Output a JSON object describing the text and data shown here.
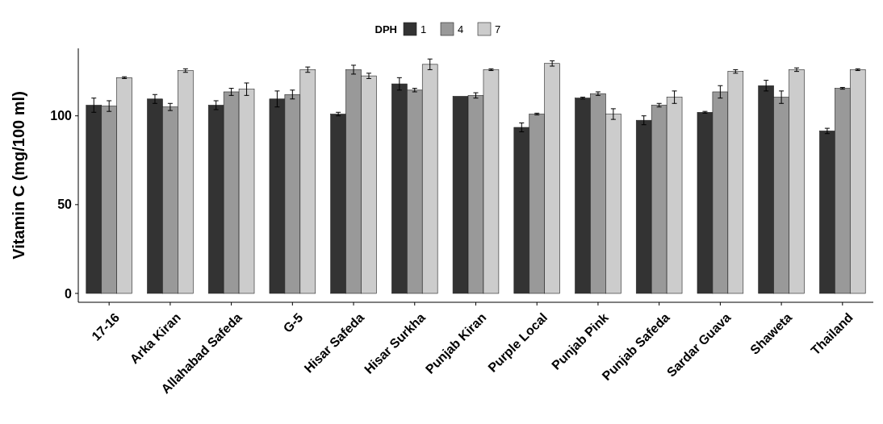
{
  "chart_data": {
    "type": "bar",
    "ylabel": "Vitamin C (mg/100 ml)",
    "legend_title": "DPH",
    "legend": "top",
    "categories": [
      "17-16",
      "Arka Kiran",
      "Allahabad Safeda",
      "G-5",
      "Hisar Safeda",
      "Hisar Surkha",
      "Punjab Kiran",
      "Purple Local",
      "Punjab Pink",
      "Punjab Safeda",
      "Sardar Guava",
      "Shaweta",
      "Thailand"
    ],
    "ylim": [
      -5,
      138
    ],
    "yticks": [
      0,
      50,
      100
    ],
    "grid": false,
    "series": [
      {
        "name": "1",
        "color": "#333333",
        "values": [
          106,
          109.5,
          106,
          109.5,
          101,
          118,
          111,
          93.5,
          110,
          97.5,
          102,
          117,
          91.5
        ],
        "errors": [
          4,
          2.5,
          2.5,
          4.5,
          1,
          3.5,
          null,
          2.5,
          0.5,
          2.5,
          0.5,
          3,
          1.5
        ]
      },
      {
        "name": "4",
        "color": "#999999",
        "values": [
          105.5,
          105,
          113.5,
          112,
          126,
          114.5,
          111.5,
          101,
          112.5,
          106,
          113.5,
          110.5,
          115.5
        ],
        "errors": [
          3,
          2,
          2,
          2.5,
          2.5,
          1,
          1.5,
          0.5,
          1,
          1,
          3.5,
          3.5,
          0.5
        ]
      },
      {
        "name": "7",
        "color": "#cccccc",
        "values": [
          121.5,
          125.5,
          115,
          126,
          122.5,
          129,
          126,
          129.5,
          101,
          110.5,
          125,
          126,
          126
        ],
        "errors": [
          0.5,
          1,
          3.5,
          1.5,
          1.5,
          3,
          0.5,
          1.5,
          3,
          3.5,
          1,
          1,
          0.5
        ]
      }
    ]
  }
}
